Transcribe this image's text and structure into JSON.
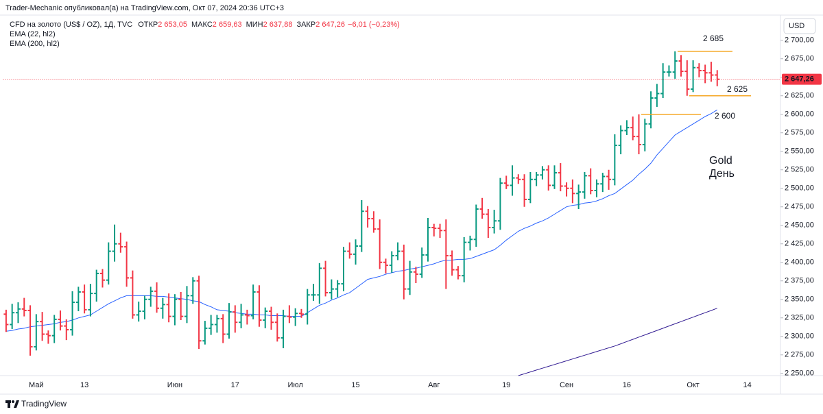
{
  "header": {
    "attribution": "Trader-Mechanic опубликовал(а) на TradingView.com, Окт 07, 2024 20:36 UTC+3",
    "symbol": "CFD на золото (US$ / OZ), 1Д, TVC",
    "ohlc": [
      {
        "label": "ОТКР",
        "value": "2 653,05"
      },
      {
        "label": "МАКС",
        "value": "2 659,63"
      },
      {
        "label": "МИН",
        "value": "2 637,88"
      },
      {
        "label": "ЗАКР",
        "value": "2 647,26"
      }
    ],
    "change": "−6,01 (−0,23%)",
    "currency": "USD",
    "brand": "TradingView"
  },
  "chart_data": {
    "type": "ohlc",
    "categories": [
      null,
      null,
      null,
      null,
      null,
      "Май",
      null,
      null,
      null,
      null,
      null,
      null,
      null,
      "13",
      null,
      null,
      null,
      null,
      null,
      null,
      null,
      null,
      null,
      null,
      null,
      null,
      null,
      null,
      "Июн",
      null,
      null,
      null,
      null,
      null,
      null,
      null,
      null,
      null,
      "17",
      null,
      null,
      null,
      null,
      null,
      null,
      null,
      null,
      null,
      "Июл",
      null,
      null,
      null,
      null,
      null,
      null,
      null,
      null,
      null,
      "15",
      null,
      null,
      null,
      null,
      null,
      null,
      null,
      null,
      null,
      null,
      null,
      null,
      "Авг",
      null,
      null,
      null,
      null,
      null,
      null,
      null,
      null,
      null,
      null,
      null,
      "19",
      null,
      null,
      null,
      null,
      null,
      null,
      null,
      null,
      null,
      "Сен",
      null,
      null,
      null,
      null,
      null,
      null,
      null,
      null,
      null,
      "16",
      null,
      null,
      null,
      null,
      null,
      null,
      null,
      null,
      null,
      null,
      "Окт",
      null,
      null,
      null,
      null,
      null,
      null,
      null,
      null,
      "14",
      null,
      null,
      null,
      null,
      null
    ],
    "open": [
      2330,
      2316,
      2332,
      2337,
      2335,
      2286,
      2320,
      2303,
      2301,
      2323,
      2314,
      2309,
      2346,
      2360,
      2336,
      2358,
      2385,
      2376,
      2415,
      2425,
      2421,
      2379,
      2329,
      2334,
      2350,
      2361,
      2338,
      2343,
      2327,
      2350,
      2327,
      2355,
      2375,
      2294,
      2311,
      2316,
      2324,
      2303,
      2333,
      2319,
      2329,
      2328,
      2360,
      2322,
      2334,
      2319,
      2298,
      2327,
      2326,
      2331,
      2330,
      2356,
      2356,
      2392,
      2359,
      2364,
      2371,
      2415,
      2411,
      2422,
      2469,
      2459,
      2445,
      2400,
      2396,
      2409,
      2415,
      2364,
      2387,
      2384,
      2410,
      2447,
      2446,
      2443,
      2409,
      2390,
      2382,
      2427,
      2431,
      2472,
      2465,
      2447,
      2456,
      2507,
      2504,
      2514,
      2512,
      2485,
      2512,
      2518,
      2525,
      2504,
      2521,
      2503,
      2500,
      2493,
      2495,
      2517,
      2497,
      2506,
      2516,
      2512,
      2558,
      2578,
      2582,
      2570,
      2559,
      2587,
      2622,
      2628,
      2657,
      2657,
      2672,
      2658,
      2634,
      2663,
      2659,
      2656,
      2653.05,
      null,
      null,
      null,
      null,
      null,
      null,
      null,
      null,
      null,
      null
    ],
    "high": [
      2336,
      2344,
      2346,
      2352,
      2342,
      2330,
      2333,
      2308,
      2329,
      2335,
      2323,
      2361,
      2367,
      2370,
      2371,
      2390,
      2391,
      2427,
      2451,
      2440,
      2428,
      2389,
      2347,
      2355,
      2367,
      2373,
      2352,
      2358,
      2357,
      2360,
      2368,
      2380,
      2382,
      2321,
      2329,
      2329,
      2330,
      2345,
      2342,
      2344,
      2336,
      2370,
      2369,
      2339,
      2340,
      2331,
      2336,
      2342,
      2338,
      2337,
      2364,
      2371,
      2399,
      2402,
      2377,
      2376,
      2421,
      2427,
      2431,
      2484,
      2476,
      2469,
      2458,
      2405,
      2415,
      2427,
      2424,
      2402,
      2394,
      2420,
      2460,
      2452,
      2452,
      2458,
      2416,
      2395,
      2434,
      2436,
      2478,
      2487,
      2472,
      2471,
      2514,
      2517,
      2531,
      2519,
      2519,
      2522,
      2522,
      2530,
      2531,
      2531,
      2534,
      2508,
      2512,
      2505,
      2522,
      2527,
      2512,
      2521,
      2525,
      2573,
      2585,
      2592,
      2597,
      2600,
      2594,
      2631,
      2641,
      2669,
      2666,
      2685,
      2680,
      2673,
      2673,
      2669,
      2667,
      2671,
      2659.63,
      null,
      null,
      null,
      null,
      null,
      null,
      null,
      null,
      null,
      null
    ],
    "low": [
      2306,
      2310,
      2318,
      2327,
      2274,
      2281,
      2294,
      2290,
      2291,
      2308,
      2295,
      2301,
      2334,
      2331,
      2327,
      2347,
      2366,
      2370,
      2401,
      2413,
      2367,
      2324,
      2320,
      2323,
      2340,
      2332,
      2324,
      2319,
      2315,
      2322,
      2318,
      2344,
      2283,
      2289,
      2302,
      2305,
      2291,
      2297,
      2305,
      2311,
      2316,
      2323,
      2313,
      2311,
      2309,
      2293,
      2284,
      2318,
      2314,
      2325,
      2316,
      2348,
      2344,
      2354,
      2350,
      2353,
      2361,
      2405,
      2397,
      2414,
      2447,
      2440,
      2391,
      2385,
      2386,
      2403,
      2350,
      2356,
      2372,
      2379,
      2401,
      2435,
      2433,
      2364,
      2382,
      2377,
      2373,
      2416,
      2421,
      2459,
      2433,
      2439,
      2444,
      2499,
      2490,
      2506,
      2475,
      2480,
      2503,
      2512,
      2497,
      2499,
      2496,
      2489,
      2480,
      2472,
      2486,
      2492,
      2488,
      2495,
      2498,
      2504,
      2546,
      2572,
      2565,
      2546,
      2550,
      2581,
      2610,
      2622,
      2651,
      2648,
      2651,
      2625,
      2630,
      2650,
      2642,
      2644,
      2637.88,
      null,
      null,
      null,
      null,
      null,
      null,
      null,
      null,
      null,
      null
    ],
    "close": [
      2316,
      2332,
      2337,
      2335,
      2286,
      2320,
      2303,
      2301,
      2323,
      2314,
      2309,
      2346,
      2360,
      2336,
      2358,
      2385,
      2376,
      2415,
      2425,
      2421,
      2379,
      2329,
      2334,
      2350,
      2361,
      2338,
      2343,
      2327,
      2350,
      2327,
      2355,
      2375,
      2294,
      2311,
      2316,
      2324,
      2303,
      2333,
      2319,
      2329,
      2328,
      2360,
      2322,
      2334,
      2319,
      2298,
      2327,
      2326,
      2331,
      2330,
      2356,
      2356,
      2392,
      2359,
      2364,
      2371,
      2415,
      2411,
      2422,
      2469,
      2459,
      2445,
      2400,
      2396,
      2409,
      2415,
      2364,
      2387,
      2384,
      2410,
      2447,
      2446,
      2443,
      2409,
      2390,
      2382,
      2427,
      2431,
      2472,
      2465,
      2447,
      2456,
      2507,
      2504,
      2514,
      2512,
      2485,
      2512,
      2518,
      2525,
      2504,
      2521,
      2503,
      2500,
      2493,
      2495,
      2517,
      2497,
      2506,
      2516,
      2512,
      2558,
      2578,
      2582,
      2570,
      2559,
      2587,
      2622,
      2628,
      2657,
      2657,
      2672,
      2658,
      2634,
      2663,
      2659,
      2656,
      2653,
      2647.26,
      null,
      null,
      null,
      null,
      null,
      null,
      null,
      null,
      null,
      null
    ],
    "up_color": "#089981",
    "down_color": "#f23645",
    "lines": [
      {
        "name": "EMA (22, hl2)",
        "color": "#2962ff",
        "values": [
          2307,
          2308,
          2310,
          2311,
          2313,
          2314,
          2315,
          2316,
          2317,
          2319,
          2320,
          2322,
          2325,
          2327,
          2329,
          2334,
          2339,
          2344,
          2348,
          2352,
          2355,
          2355,
          2355,
          2355,
          2355,
          2354,
          2354,
          2353,
          2352,
          2351,
          2350,
          2348,
          2347,
          2343,
          2340,
          2336,
          2335,
          2334,
          2332,
          2331,
          2330,
          2330,
          2329,
          2329,
          2328,
          2328,
          2328,
          2327,
          2327,
          2327,
          2332,
          2337,
          2342,
          2345,
          2349,
          2352,
          2356,
          2359,
          2365,
          2371,
          2377,
          2379,
          2381,
          2384,
          2386,
          2388,
          2389,
          2391,
          2392,
          2394,
          2396,
          2398,
          2401,
          2403,
          2403,
          2404,
          2404,
          2405,
          2408,
          2411,
          2414,
          2417,
          2423,
          2430,
          2436,
          2442,
          2446,
          2449,
          2453,
          2456,
          2460,
          2465,
          2470,
          2475,
          2477,
          2478,
          2480,
          2481,
          2483,
          2486,
          2490,
          2493,
          2499,
          2505,
          2511,
          2519,
          2526,
          2534,
          2545,
          2554,
          2563,
          2572,
          2577,
          2582,
          2587,
          2592,
          2597,
          2601,
          2606,
          null,
          null,
          null,
          null,
          null,
          null,
          null,
          null,
          null,
          null
        ]
      },
      {
        "name": "EMA (200, hl2)",
        "color": "#311b92",
        "values": [
          null,
          null,
          null,
          null,
          null,
          null,
          null,
          null,
          null,
          null,
          null,
          null,
          null,
          null,
          null,
          null,
          null,
          null,
          null,
          null,
          null,
          null,
          null,
          null,
          null,
          null,
          null,
          null,
          null,
          null,
          null,
          null,
          null,
          null,
          null,
          null,
          null,
          null,
          null,
          null,
          null,
          null,
          null,
          null,
          null,
          null,
          null,
          null,
          null,
          null,
          null,
          null,
          null,
          null,
          null,
          null,
          null,
          null,
          null,
          null,
          null,
          null,
          null,
          null,
          null,
          null,
          null,
          null,
          null,
          null,
          null,
          null,
          null,
          null,
          null,
          null,
          null,
          null,
          null,
          null,
          null,
          null,
          null,
          null,
          null,
          2247,
          2249.5,
          2252,
          2254.5,
          2257,
          2259.5,
          2262,
          2264.5,
          2267,
          2269.5,
          2272,
          2274.5,
          2277,
          2279.5,
          2282,
          2284.5,
          2287,
          2290,
          2293,
          2296,
          2299,
          2302,
          2305,
          2308,
          2311,
          2314,
          2317,
          2320,
          2323,
          2326,
          2329,
          2332,
          2335,
          2338,
          null,
          null,
          null,
          null,
          null,
          null,
          null,
          null,
          null,
          null
        ]
      }
    ],
    "ylim": [
      2247,
      2734
    ],
    "yticks": [
      {
        "value": 2250,
        "label": "2 250,00"
      },
      {
        "value": 2275,
        "label": "2 275,00"
      },
      {
        "value": 2300,
        "label": "2 300,00"
      },
      {
        "value": 2325,
        "label": "2 325,00"
      },
      {
        "value": 2350,
        "label": "2 350,00"
      },
      {
        "value": 2375,
        "label": "2 375,00"
      },
      {
        "value": 2400,
        "label": "2 400,00"
      },
      {
        "value": 2425,
        "label": "2 425,00"
      },
      {
        "value": 2450,
        "label": "2 450,00"
      },
      {
        "value": 2475,
        "label": "2 475,00"
      },
      {
        "value": 2500,
        "label": "2 500,00"
      },
      {
        "value": 2525,
        "label": "2 525,00"
      },
      {
        "value": 2550,
        "label": "2 550,00"
      },
      {
        "value": 2575,
        "label": "2 575,00"
      },
      {
        "value": 2600,
        "label": "2 600,00"
      },
      {
        "value": 2625,
        "label": "2 625,00"
      },
      {
        "value": 2650,
        "label": "2 650,00"
      },
      {
        "value": 2675,
        "label": "2 675,00"
      },
      {
        "value": 2700,
        "label": "2 700,00"
      }
    ],
    "grid": false,
    "price_line": {
      "value": 2647.26,
      "label": "2 647,26",
      "color": "#f23645"
    },
    "levels": [
      {
        "value": 2685,
        "label": "2 685"
      },
      {
        "value": 2625,
        "label": "2 625"
      },
      {
        "value": 2600,
        "label": "2 600"
      }
    ],
    "level_color": "#f5a623",
    "annotation": [
      "Gold",
      "День"
    ]
  }
}
